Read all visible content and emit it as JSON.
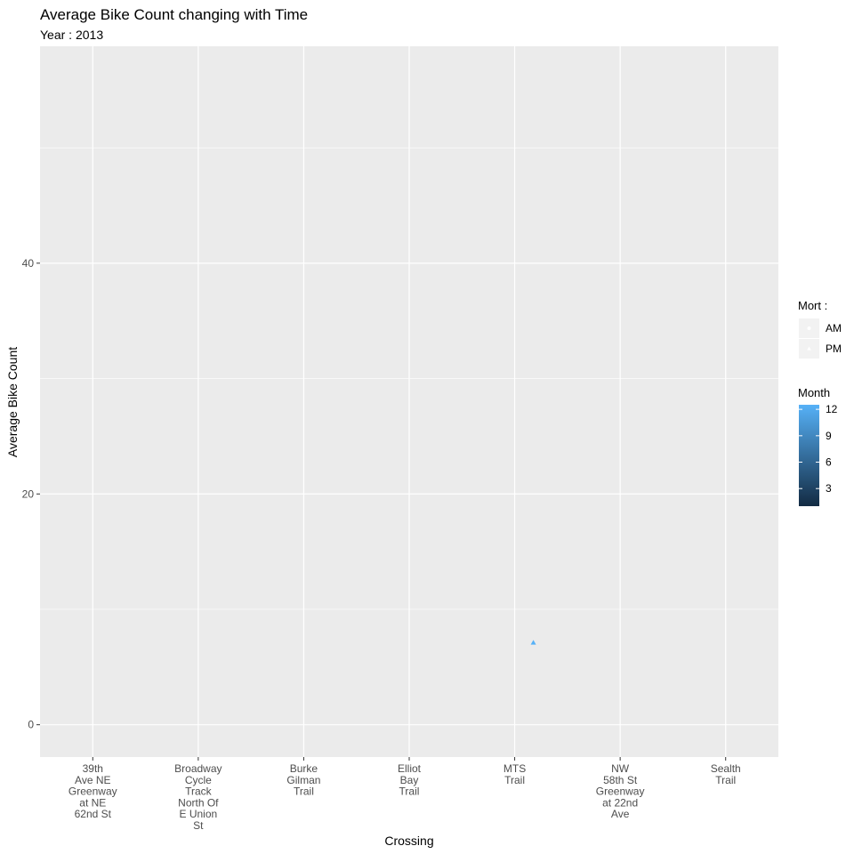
{
  "chart_data": {
    "type": "scatter",
    "title": "Average Bike Count changing with Time",
    "subtitle": "Year : 2013",
    "xlabel": "Crossing",
    "ylabel": "Average Bike Count",
    "categories": [
      "39th\nAve NE\nGreenway\nat NE\n62nd St",
      "Broadway\nCycle\nTrack\nNorth Of\nE Union\nSt",
      "Burke\nGilman\nTrail",
      "Elliot\nBay\nTrail",
      "MTS\nTrail",
      "NW\n58th St\nGreenway\nat 22nd\nAve",
      "Sealth\nTrail"
    ],
    "ylim": [
      -2.8,
      58.8
    ],
    "yticks": [
      0,
      20,
      40
    ],
    "grid": true,
    "points": [
      {
        "x": "MTS\nTrail",
        "y": 7.1,
        "time": "PM",
        "month": 12
      }
    ],
    "legend_placement": "right",
    "shape_legend": {
      "title": "Mort :",
      "items": [
        {
          "label": "AM",
          "shape": "circle"
        },
        {
          "label": "PM",
          "shape": "triangle"
        }
      ]
    },
    "color_legend": {
      "title": "Month",
      "range": [
        1,
        12
      ],
      "ticks": [
        3,
        6,
        9,
        12
      ],
      "colors": [
        "#132b43",
        "#56b1f7"
      ]
    },
    "colors": {
      "panel_bg": "#ebebeb",
      "grid_major": "#ffffff",
      "point": "#56b1f7"
    }
  }
}
